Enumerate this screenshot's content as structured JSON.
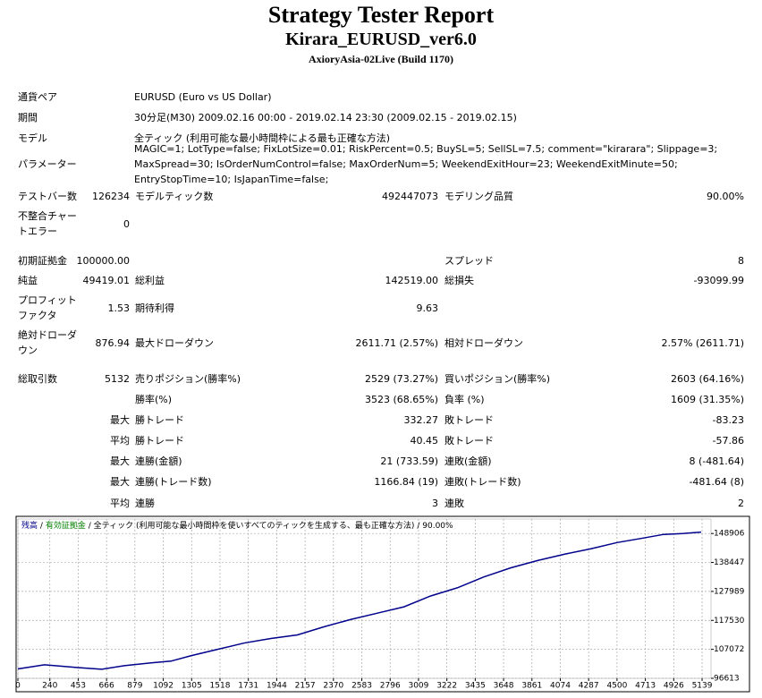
{
  "header": {
    "title": "Strategy Tester Report",
    "subtitle": "Kirara_EURUSD_ver6.0",
    "build": "AxioryAsia-02Live (Build 1170)"
  },
  "info": [
    {
      "label": "通貨ペア",
      "value": "EURUSD (Euro vs US Dollar)"
    },
    {
      "label": "期間",
      "value": "30分足(M30) 2009.02.16 00:00 - 2019.02.14 23:30 (2009.02.15 - 2019.02.15)"
    },
    {
      "label": "モデル",
      "value": "全ティック (利用可能な最小時間枠による最も正確な方法)"
    },
    {
      "label": "パラメーター",
      "value": "MAGIC=1; LotType=false; FixLotSize=0.01; RiskPercent=0.5; BuySL=5; SellSL=7.5; comment=\"kirarara\"; Slippage=3; MaxSpread=30; IsOrderNumControl=false; MaxOrderNum=5; WeekendExitHour=23; WeekendExitMinute=50; EntryStopTime=10; IsJapanTime=false;"
    }
  ],
  "stats": {
    "rows": [
      [
        "テストバー数",
        "126234",
        "モデルティック数",
        "492447073",
        "モデリング品質",
        "90.00%"
      ],
      [
        "不整合チャートエラー",
        "0",
        null,
        null,
        null,
        null
      ],
      [
        "初期証拠金",
        "100000.00",
        null,
        null,
        "スプレッド",
        "8"
      ],
      [
        "純益",
        "49419.01",
        "総利益",
        "142519.00",
        "総損失",
        "-93099.99"
      ],
      [
        "プロフィットファクタ",
        "1.53",
        "期待利得",
        "9.63",
        null,
        null
      ],
      [
        "絶対ドローダウン",
        "876.94",
        "最大ドローダウン",
        "2611.71 (2.57%)",
        "相対ドローダウン",
        "2.57% (2611.71)"
      ],
      [
        "総取引数",
        "5132",
        "売りポジション(勝率%)",
        "2529 (73.27%)",
        "買いポジション(勝率%)",
        "2603 (64.16%)"
      ],
      [
        null,
        null,
        "勝率(%)",
        "3523 (68.65%)",
        "負率 (%)",
        "1609 (31.35%)"
      ],
      [
        null,
        "最大",
        "勝トレード",
        "332.27",
        "敗トレード",
        "-83.23"
      ],
      [
        null,
        "平均",
        "勝トレード",
        "40.45",
        "敗トレード",
        "-57.86"
      ],
      [
        null,
        "最大",
        "連勝(金額)",
        "21 (733.59)",
        "連敗(金額)",
        "8 (-481.64)"
      ],
      [
        null,
        "最大",
        "連勝(トレード数)",
        "1166.84 (19)",
        "連敗(トレード数)",
        "-481.64 (8)"
      ],
      [
        null,
        "平均",
        "連勝",
        "3",
        "連敗",
        "2"
      ]
    ]
  },
  "chart_data": {
    "type": "line",
    "legend": {
      "separator": "/",
      "equity_label": "有効証拠金",
      "equity_color": "#008000",
      "model_label": "全ティック (利用可能な最小時間枠を使いすべてのティックを生成する、最も正確な方法)",
      "quality": "90.00%"
    },
    "x": [
      0,
      200,
      450,
      630,
      800,
      1000,
      1150,
      1300,
      1500,
      1700,
      1900,
      2100,
      2300,
      2500,
      2700,
      2900,
      3100,
      3300,
      3500,
      3700,
      3900,
      4100,
      4300,
      4500,
      4700,
      4850,
      5000,
      5132
    ],
    "series": [
      {
        "name": "残高",
        "color": "#00008b",
        "values": [
          100000,
          101500,
          100500,
          99880,
          101190,
          102170,
          102820,
          104780,
          107070,
          109360,
          110990,
          112300,
          115240,
          117860,
          120140,
          122430,
          126350,
          129290,
          133220,
          136480,
          139100,
          141380,
          143350,
          145630,
          147290,
          148580,
          148910,
          149419
        ]
      }
    ],
    "xlim": [
      0,
      5206
    ],
    "ylim": [
      96613,
      154135
    ],
    "xticks": [
      0,
      240,
      453,
      666,
      879,
      1092,
      1305,
      1518,
      1731,
      1944,
      2157,
      2370,
      2583,
      2796,
      3009,
      3222,
      3435,
      3648,
      3861,
      4074,
      4287,
      4500,
      4713,
      4926,
      5139
    ],
    "yticks": [
      96613,
      107072,
      117530,
      127989,
      138447,
      148906
    ],
    "grid": true
  }
}
